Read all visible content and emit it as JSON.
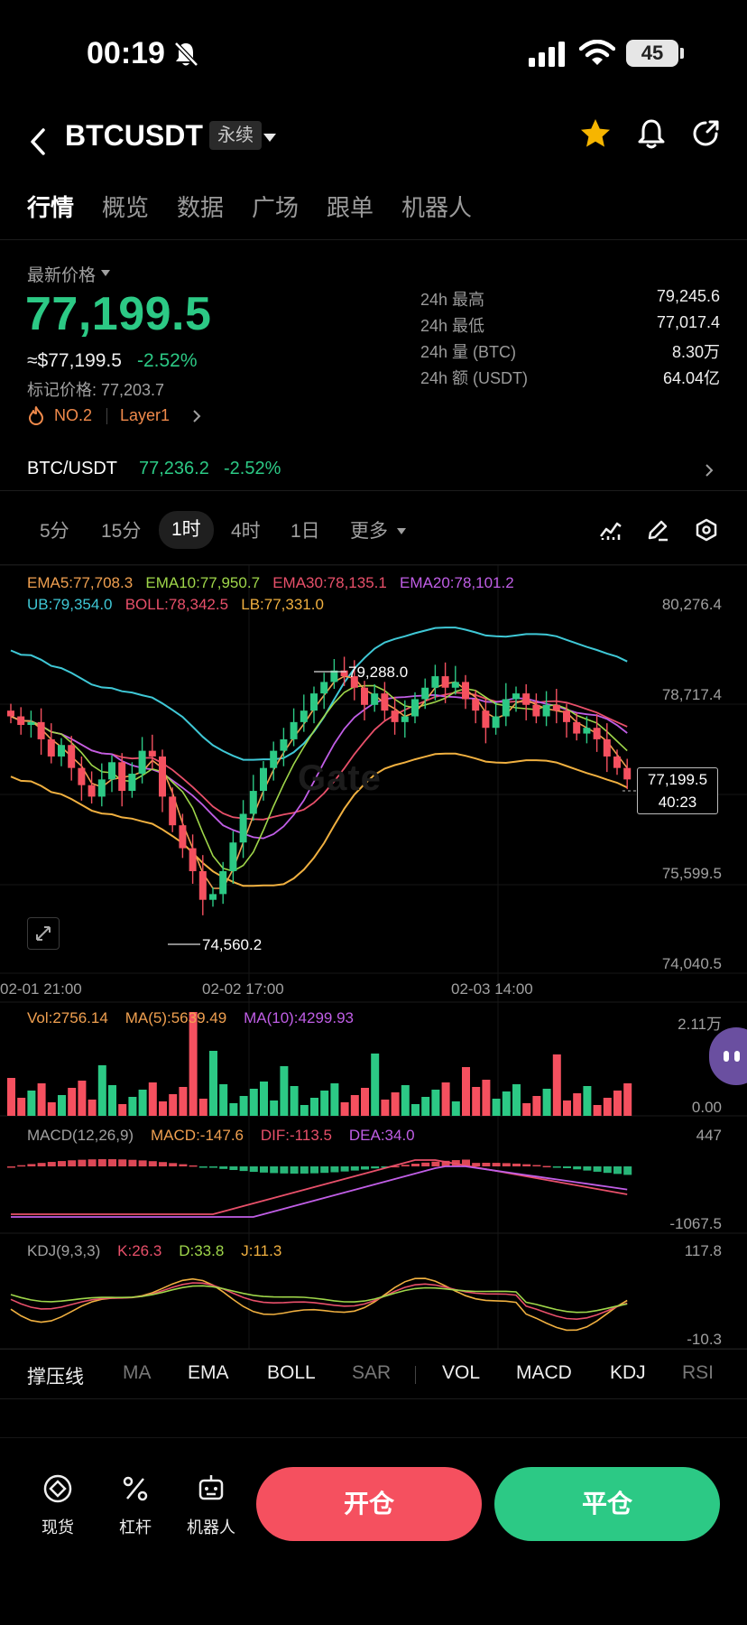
{
  "status_bar": {
    "time": "00:19",
    "battery": "45"
  },
  "header": {
    "symbol": "BTCUSDT",
    "contract_type": "永续"
  },
  "tabs": [
    "行情",
    "概览",
    "数据",
    "广场",
    "跟单",
    "机器人"
  ],
  "price": {
    "label": "最新价格",
    "last": "77,199.5",
    "usd": "≈$77,199.5",
    "change": "-2.52%",
    "mark": "标记价格: 77,203.7",
    "rank": "NO.2",
    "tag": "Layer1"
  },
  "stats": [
    {
      "label": "24h  最高",
      "value": "79,245.6"
    },
    {
      "label": "24h  最低",
      "value": "77,017.4"
    },
    {
      "label": "24h  量 (BTC)",
      "value": "8.30万"
    },
    {
      "label": "24h  额 (USDT)",
      "value": "64.04亿"
    }
  ],
  "spot_pair": {
    "name": "BTC/USDT",
    "price": "77,236.2",
    "change": "-2.52%"
  },
  "intervals": [
    "5分",
    "15分",
    "1时",
    "4时",
    "1日",
    "更多"
  ],
  "indicators": {
    "ema5": "EMA5:77,708.3",
    "ema10": "EMA10:77,950.7",
    "ema30": "EMA30:78,135.1",
    "ema20": "EMA20:78,101.2",
    "ub": "UB:79,354.0",
    "boll": "BOLL:78,342.5",
    "lb": "LB:77,331.0"
  },
  "price_axis": [
    "80,276.4",
    "78,717.4",
    "75,599.5",
    "74,040.5"
  ],
  "time_axis": [
    "02-01 21:00",
    "02-02 17:00",
    "02-03 14:00"
  ],
  "annotations": {
    "high": "79,288.0",
    "low": "74,560.2",
    "current_price": "77,199.5",
    "countdown": "40:23"
  },
  "volume": {
    "vol": "Vol:2756.14",
    "ma5": "MA(5):5639.49",
    "ma10": "MA(10):4299.93",
    "max": "2.11万",
    "min": "0.00"
  },
  "macd": {
    "title": "MACD(12,26,9)",
    "macd": "MACD:-147.6",
    "dif": "DIF:-113.5",
    "dea": "DEA:34.0",
    "max": "447",
    "min": "-1067.5"
  },
  "kdj": {
    "title": "KDJ(9,3,3)",
    "k": "K:26.3",
    "d": "D:33.8",
    "j": "J:11.3",
    "max": "117.8",
    "min": "-10.3"
  },
  "indicator_tabs": [
    "撑压线",
    "MA",
    "EMA",
    "BOLL",
    "SAR",
    "VOL",
    "MACD",
    "KDJ",
    "RSI"
  ],
  "bottom_nav": [
    "现货",
    "杠杆",
    "机器人"
  ],
  "actions": {
    "open": "开仓",
    "close": "平仓"
  },
  "watermark": "Gate",
  "colors": {
    "up": "#2cc985",
    "down": "#f5505f",
    "background": "#000000"
  }
}
